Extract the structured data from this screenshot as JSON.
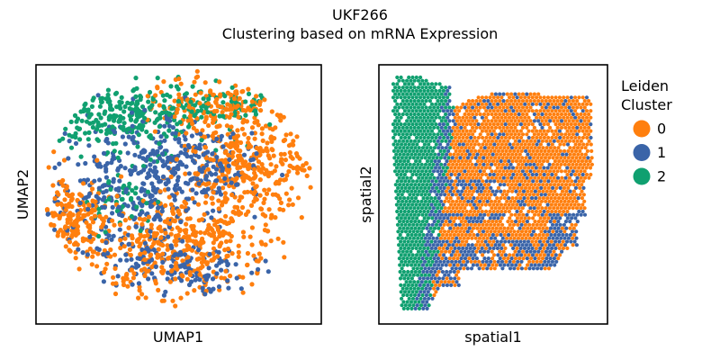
{
  "figure": {
    "title": "UKF266",
    "subtitle": "Clustering based on mRNA Expression"
  },
  "legend": {
    "title_line1": "Leiden",
    "title_line2": "Cluster",
    "placement": "right",
    "entries": [
      {
        "label": "0",
        "color": "#ff7f0e"
      },
      {
        "label": "1",
        "color": "#3a64a8"
      },
      {
        "label": "2",
        "color": "#10a070"
      }
    ]
  },
  "chart_data": [
    {
      "type": "scatter",
      "xlabel": "UMAP1",
      "ylabel": "UMAP2",
      "ticks": false,
      "grid": false,
      "clusters": [
        {
          "name": "0",
          "color": "#ff7f0e",
          "regions": [
            {
              "cx": 0.74,
              "cy": 0.62,
              "rx": 0.22,
              "ry": 0.2,
              "n": 380
            },
            {
              "cx": 0.5,
              "cy": 0.3,
              "rx": 0.3,
              "ry": 0.18,
              "n": 420
            },
            {
              "cx": 0.13,
              "cy": 0.4,
              "rx": 0.11,
              "ry": 0.17,
              "n": 190
            },
            {
              "cx": 0.6,
              "cy": 0.84,
              "rx": 0.18,
              "ry": 0.1,
              "n": 130
            }
          ]
        },
        {
          "name": "1",
          "color": "#3a64a8",
          "regions": [
            {
              "cx": 0.33,
              "cy": 0.5,
              "rx": 0.24,
              "ry": 0.28,
              "n": 360
            },
            {
              "cx": 0.58,
              "cy": 0.62,
              "rx": 0.2,
              "ry": 0.14,
              "n": 170
            },
            {
              "cx": 0.55,
              "cy": 0.2,
              "rx": 0.24,
              "ry": 0.1,
              "n": 110
            }
          ]
        },
        {
          "name": "2",
          "color": "#10a070",
          "regions": [
            {
              "cx": 0.32,
              "cy": 0.8,
              "rx": 0.24,
              "ry": 0.12,
              "n": 300
            },
            {
              "cx": 0.66,
              "cy": 0.84,
              "rx": 0.16,
              "ry": 0.07,
              "n": 70
            },
            {
              "cx": 0.3,
              "cy": 0.48,
              "rx": 0.12,
              "ry": 0.12,
              "n": 50
            }
          ]
        }
      ]
    },
    {
      "type": "scatter",
      "xlabel": "spatial1",
      "ylabel": "spatial2",
      "ticks": false,
      "grid": false,
      "clusters": [
        {
          "name": "0",
          "color": "#ff7f0e"
        },
        {
          "name": "1",
          "color": "#3a64a8"
        },
        {
          "name": "2",
          "color": "#10a070"
        }
      ]
    }
  ]
}
